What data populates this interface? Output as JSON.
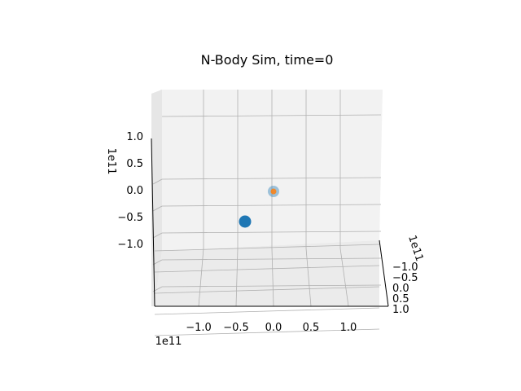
{
  "chart_data": {
    "type": "scatter",
    "projection": "3d",
    "title": "N-Body Sim, time=0",
    "x_axis": {
      "ticks": [
        -1.0,
        -0.5,
        0.0,
        0.5,
        1.0
      ],
      "tick_labels": [
        "−1.0",
        "−0.5",
        "0.0",
        "0.5",
        "1.0"
      ],
      "offset_label": "1e11"
    },
    "y_axis": {
      "ticks": [
        -1.0,
        -0.5,
        0.0,
        0.5,
        1.0
      ],
      "tick_labels": [
        "−1.0",
        "−0.5",
        "0.0",
        "0.5",
        "1.0"
      ],
      "offset_label": "1e11"
    },
    "z_axis": {
      "ticks": [
        1.0,
        0.5,
        0.0,
        -0.5,
        -1.0
      ],
      "tick_labels": [
        "1.0",
        "0.5",
        "0.0",
        "−0.5",
        "−1.0"
      ],
      "offset_label": "1e11"
    },
    "grid": true,
    "series": [
      {
        "color": "#1f77b4",
        "points": [
          {
            "x": 0.0,
            "z": 0.4
          },
          {
            "x": -0.4,
            "z": -0.15
          }
        ]
      },
      {
        "color": "#ff7f0e",
        "points": [
          {
            "x": 0.0,
            "z": 0.4
          }
        ]
      }
    ]
  }
}
